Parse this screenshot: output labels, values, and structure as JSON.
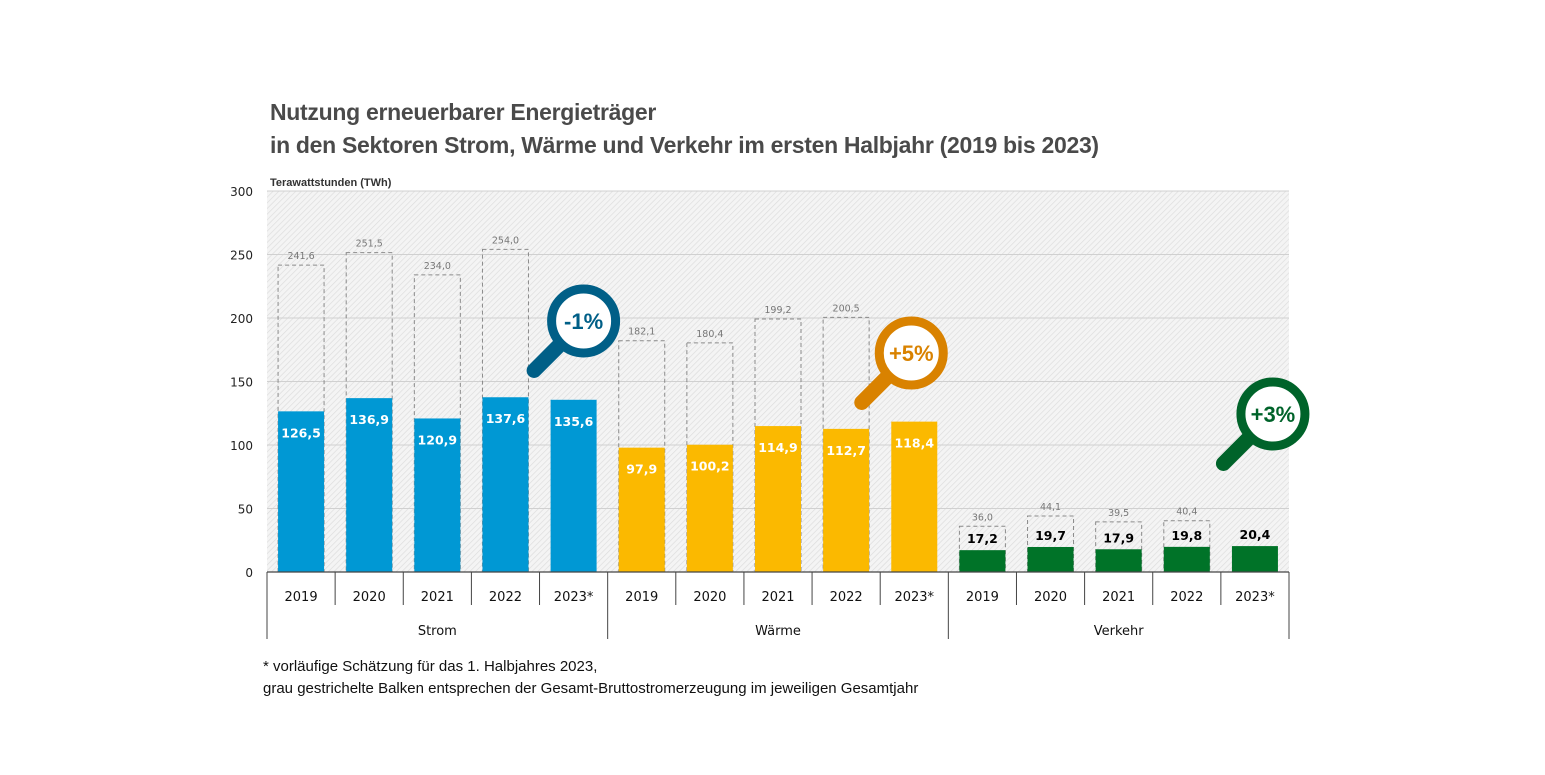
{
  "chart_data": {
    "type": "bar",
    "title": "Nutzung erneuerbarer Energieträger",
    "subtitle": "in den Sektoren Strom, Wärme und Verkehr im ersten Halbjahr (2019 bis 2023)",
    "ylabel": "Terawattstunden (TWh)",
    "xlabel": "",
    "ylim": [
      0,
      300
    ],
    "yticks": [
      0,
      50,
      100,
      150,
      200,
      250,
      300
    ],
    "grid": true,
    "categories": [
      "2019",
      "2020",
      "2021",
      "2022",
      "2023*"
    ],
    "groups": [
      {
        "name": "Strom",
        "color": "#0098d4",
        "label_color": "#ffffff",
        "values": [
          126.5,
          136.9,
          120.9,
          137.6,
          135.6
        ],
        "value_labels": [
          "126,5",
          "136,9",
          "120,9",
          "137,6",
          "135,6"
        ],
        "totals": [
          241.6,
          251.5,
          234.0,
          254.0,
          null
        ],
        "total_labels": [
          "241,6",
          "251,5",
          "234,0",
          "254,0",
          null
        ],
        "change": {
          "label": "-1%",
          "color": "#005f87"
        }
      },
      {
        "name": "Wärme",
        "color": "#fbb900",
        "label_color": "#ffffff",
        "values": [
          97.9,
          100.2,
          114.9,
          112.7,
          118.4
        ],
        "value_labels": [
          "97,9",
          "100,2",
          "114,9",
          "112,7",
          "118,4"
        ],
        "totals": [
          182.1,
          180.4,
          199.2,
          200.5,
          null
        ],
        "total_labels": [
          "182,1",
          "180,4",
          "199,2",
          "200,5",
          null
        ],
        "change": {
          "label": "+5%",
          "color": "#d98200"
        }
      },
      {
        "name": "Verkehr",
        "color": "#007328",
        "label_color": "#000000",
        "values": [
          17.2,
          19.7,
          17.9,
          19.8,
          20.4
        ],
        "value_labels": [
          "17,2",
          "19,7",
          "17,9",
          "19,8",
          "20,4"
        ],
        "totals": [
          36.0,
          44.1,
          39.5,
          40.4,
          null
        ],
        "total_labels": [
          "36,0",
          "44,1",
          "39,5",
          "40,4",
          null
        ],
        "change": {
          "label": "+3%",
          "color": "#00632a"
        }
      }
    ],
    "legend": "none"
  },
  "footnote": {
    "line1": "* vorläufige Schätzung für das 1. Halbjahres 2023,",
    "line2": "grau gestrichelte Balken entsprechen der Gesamt-Bruttostromerzeugung im jeweiligen Gesamtjahr"
  }
}
